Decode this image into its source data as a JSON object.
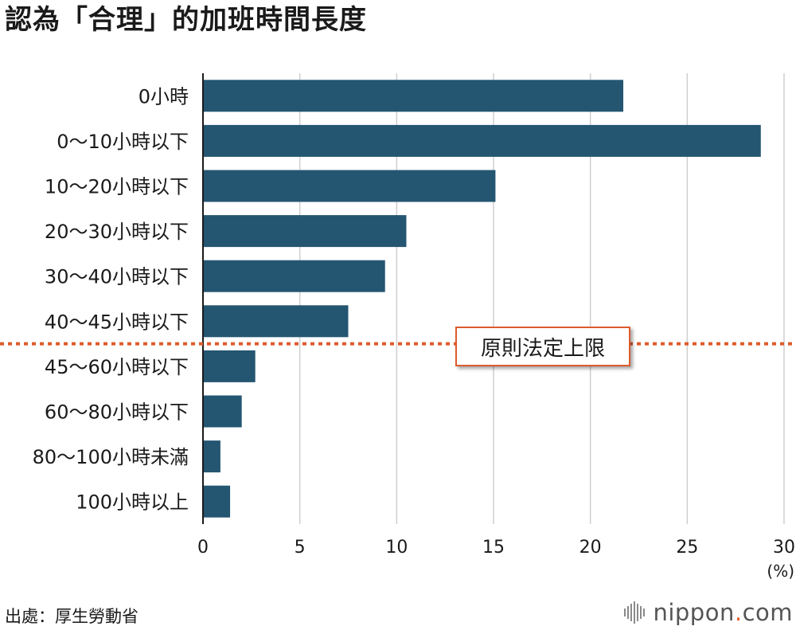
{
  "chart_data": {
    "type": "bar",
    "orientation": "horizontal",
    "title": "認為「合理」的加班時間長度",
    "categories": [
      "0小時",
      "0〜10小時以下",
      "10〜20小時以下",
      "20〜30小時以下",
      "30〜40小時以下",
      "40〜45小時以下",
      "45〜60小時以下",
      "60〜80小時以下",
      "80〜100小時未滿",
      "100小時以上"
    ],
    "values": [
      21.7,
      28.8,
      15.1,
      10.5,
      9.4,
      7.5,
      2.7,
      2.0,
      0.9,
      1.4
    ],
    "xlim": [
      0,
      30
    ],
    "xticks": [
      0,
      5,
      10,
      15,
      20,
      25,
      30
    ],
    "xunit": "(%)",
    "grid": true,
    "bar_color": "#245672",
    "reference_line": {
      "label": "原則法定上限",
      "between": [
        "40〜45小時以下",
        "45〜60小時以下"
      ],
      "color": "#dd5b2c",
      "style": "dotted"
    }
  },
  "source": "出處：厚生勞動省",
  "logo": {
    "name": "nippon",
    "dot": ".",
    "suffix": "com"
  }
}
